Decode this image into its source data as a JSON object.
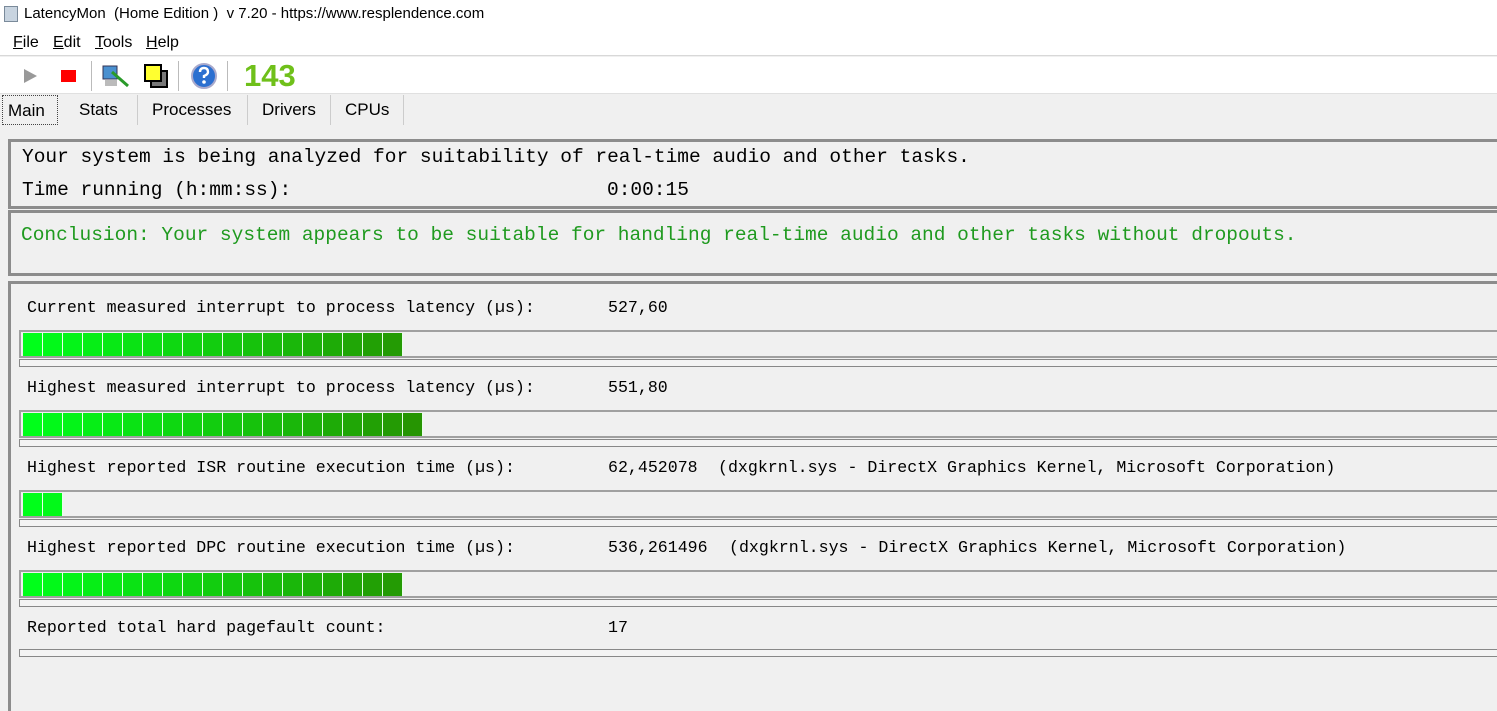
{
  "window": {
    "title": "LatencyMon  (Home Edition )  v 7.20 - https://www.resplendence.com",
    "overlay_text": "143"
  },
  "menu": [
    "File",
    "Edit",
    "Tools",
    "Help"
  ],
  "toolbar": [
    {
      "icon": "play-icon"
    },
    {
      "icon": "stop-icon"
    },
    {
      "icon": "analyze-icon"
    },
    {
      "icon": "windows-icon"
    },
    {
      "icon": "help-icon"
    }
  ],
  "tabs": [
    {
      "label": "Main",
      "active": true
    },
    {
      "label": "Stats"
    },
    {
      "label": "Processes"
    },
    {
      "label": "Drivers"
    },
    {
      "label": "CPUs"
    }
  ],
  "status": {
    "analyzing": "Your system is being analyzed for suitability of real-time audio and other tasks.",
    "time_label": "Time running (h:mm:ss):",
    "time_value": "0:00:15"
  },
  "conclusion": {
    "text": "Conclusion: Your system appears to be suitable for handling real-time audio and other tasks without dropouts.",
    "color": "#1f9a1f"
  },
  "metrics": [
    {
      "label": "Current measured interrupt to process latency (µs):",
      "value": "527,60",
      "detail": "",
      "filled_segments": 19
    },
    {
      "label": "Highest measured interrupt to process latency (µs):",
      "value": "551,80",
      "detail": "",
      "filled_segments": 20
    },
    {
      "label": "Highest reported ISR routine execution time (µs):",
      "value": "62,452078",
      "detail": "(dxgkrnl.sys - DirectX Graphics Kernel, Microsoft Corporation)",
      "filled_segments": 2
    },
    {
      "label": "Highest reported DPC routine execution time (µs):",
      "value": "536,261496",
      "detail": "(dxgkrnl.sys - DirectX Graphics Kernel, Microsoft Corporation)",
      "filled_segments": 19
    },
    {
      "label": "Reported total hard pagefault count:",
      "value": "17",
      "detail": ""
    }
  ],
  "bar_colors": {
    "start": "#00ff1a",
    "end": "#2a8a00"
  }
}
